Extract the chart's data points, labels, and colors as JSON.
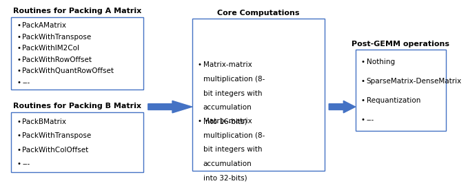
{
  "bg_color": "#ffffff",
  "box_border_color": "#4472c4",
  "arrow_color": "#4472c4",
  "text_color": "#000000",
  "title_color": "#000000",
  "box_a_title": "Routines for Packing A Matrix",
  "box_a_items": [
    "PackAMatrix",
    "PackWithTranspose",
    "PackWithIM2Col",
    "PackWithRowOffset",
    "PackWithQuantRowOffset",
    "---"
  ],
  "box_b_title": "Routines for Packing B Matrix",
  "box_b_items": [
    "PackBMatrix",
    "PackWithTranspose",
    "PackWithColOffset",
    "---"
  ],
  "box_core_title": "Core Computations",
  "box_core_item1_lines": [
    "Matrix-matrix",
    "multiplication (8-",
    "bit integers with",
    "accumulation",
    "into 16-bits)"
  ],
  "box_core_item2_lines": [
    "Matrix-matrix",
    "multiplication (8-",
    "bit integers with",
    "accumulation",
    "into 32-bits)"
  ],
  "box_post_title": "Post-GEMM operations",
  "box_post_items": [
    "Nothing",
    "SparseMatrix-DenseMatrix",
    "Requantization",
    "---"
  ],
  "title_fontsize": 8,
  "item_fontsize": 7.5,
  "bullet": "•"
}
